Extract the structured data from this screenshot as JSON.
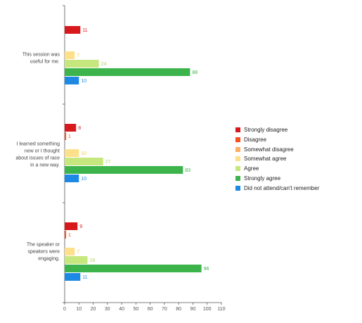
{
  "chart_data": {
    "type": "bar",
    "orientation": "horizontal",
    "categories": [
      "This session was useful for me.",
      "I learned something new or I thought about issues of race in a new way.",
      "The speaker or speakers were engaging."
    ],
    "series": [
      {
        "name": "Strongly disagree",
        "color": "#d7191c",
        "values": [
          11,
          8,
          9
        ]
      },
      {
        "name": "Disagree",
        "color": "#f4511e",
        "values": [
          null,
          1,
          1
        ]
      },
      {
        "name": "Somewhat disagree",
        "color": "#fdae61",
        "values": [
          null,
          null,
          null
        ]
      },
      {
        "name": "Somewhat agree",
        "color": "#fee08b",
        "values": [
          7,
          10,
          7
        ]
      },
      {
        "name": "Agree",
        "color": "#c6e67e",
        "values": [
          24,
          27,
          16
        ]
      },
      {
        "name": "Strongly agree",
        "color": "#3cb44b",
        "values": [
          88,
          83,
          96
        ]
      },
      {
        "name": "Did not attend/can't remember",
        "color": "#1e88e5",
        "values": [
          10,
          10,
          11
        ]
      }
    ],
    "x_ticks": [
      0,
      10,
      20,
      30,
      40,
      50,
      60,
      70,
      80,
      90,
      100,
      110
    ],
    "xlim": [
      0,
      110
    ],
    "grid": false,
    "legend_position": "right"
  }
}
